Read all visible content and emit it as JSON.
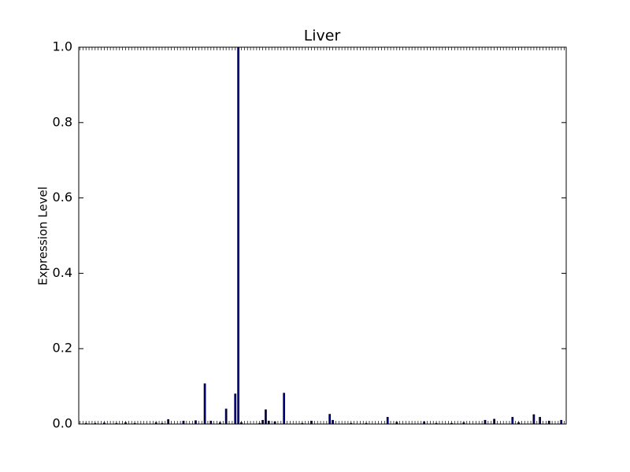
{
  "chart_data": {
    "type": "bar",
    "title": "Liver",
    "ylabel": "Expression Level",
    "categories": [
      null,
      null,
      null,
      null,
      null,
      null,
      null,
      null,
      null,
      null,
      null,
      null,
      null,
      null,
      null,
      null,
      null,
      null,
      null,
      null,
      null,
      null,
      null,
      null,
      null,
      null,
      null,
      null,
      null,
      null,
      null,
      null,
      null,
      null,
      null,
      null,
      null,
      null,
      null,
      null,
      null,
      null,
      null,
      null,
      null,
      null,
      null,
      null,
      null,
      null,
      null,
      null,
      null,
      null,
      null,
      null,
      null,
      null,
      null,
      null,
      null,
      null,
      null,
      null,
      null,
      null,
      null,
      null,
      null,
      null,
      null,
      null,
      null,
      null,
      null,
      null,
      null,
      null,
      null,
      null,
      null,
      null,
      null,
      null,
      null,
      null,
      null,
      null,
      null,
      null,
      null,
      null,
      null,
      null,
      null,
      null,
      null,
      null,
      null,
      null,
      null,
      null,
      null,
      null,
      null,
      null,
      null,
      null,
      null,
      null,
      null,
      null,
      null,
      null,
      null,
      null,
      null,
      null,
      null,
      null,
      null,
      null,
      null,
      null,
      null,
      null,
      null,
      null,
      null,
      null,
      null,
      null,
      null,
      null,
      null,
      null,
      null,
      null,
      null,
      null,
      null,
      null,
      null,
      null,
      null,
      null,
      null,
      null,
      null,
      null,
      null,
      null,
      null,
      null,
      null,
      null,
      null,
      null,
      null,
      null
    ],
    "values": [
      0,
      0,
      0.002,
      0,
      0,
      0.002,
      0,
      0,
      0.003,
      0,
      0,
      0,
      0.002,
      0,
      0,
      0.004,
      0,
      0,
      0.002,
      0,
      0,
      0,
      0,
      0,
      0,
      0.004,
      0,
      0.002,
      0,
      0.012,
      0,
      0,
      0,
      0,
      0.008,
      0,
      0,
      0,
      0.009,
      0,
      0,
      0.107,
      0,
      0.008,
      0,
      0,
      0.004,
      0,
      0.04,
      0,
      0,
      0.08,
      1.0,
      0.004,
      0,
      0,
      0,
      0,
      0,
      0.002,
      0.01,
      0.038,
      0.008,
      0,
      0.006,
      0,
      0,
      0.082,
      0,
      0,
      0,
      0,
      0,
      0.002,
      0,
      0,
      0.008,
      0,
      0,
      0,
      0,
      0,
      0.026,
      0.01,
      0,
      0,
      0,
      0,
      0,
      0.002,
      0,
      0,
      0,
      0,
      0.002,
      0,
      0,
      0,
      0,
      0,
      0,
      0.018,
      0,
      0,
      0.005,
      0,
      0,
      0,
      0,
      0,
      0,
      0,
      0,
      0.006,
      0,
      0,
      0,
      0.002,
      0,
      0,
      0,
      0,
      0.002,
      0,
      0,
      0,
      0.004,
      0,
      0,
      0,
      0,
      0,
      0,
      0.01,
      0,
      0,
      0.013,
      0,
      0,
      0,
      0,
      0,
      0.018,
      0,
      0.004,
      0,
      0,
      0,
      0,
      0.025,
      0,
      0.018,
      0,
      0,
      0.008,
      0,
      0,
      0,
      0.01,
      0
    ],
    "color": "#000080",
    "ylim": [
      0,
      1
    ],
    "yticks": [
      {
        "value": 0,
        "label": "0.0"
      },
      0.2,
      0.4,
      0.6,
      0.8,
      {
        "value": 1,
        "label": "1.0"
      }
    ]
  }
}
